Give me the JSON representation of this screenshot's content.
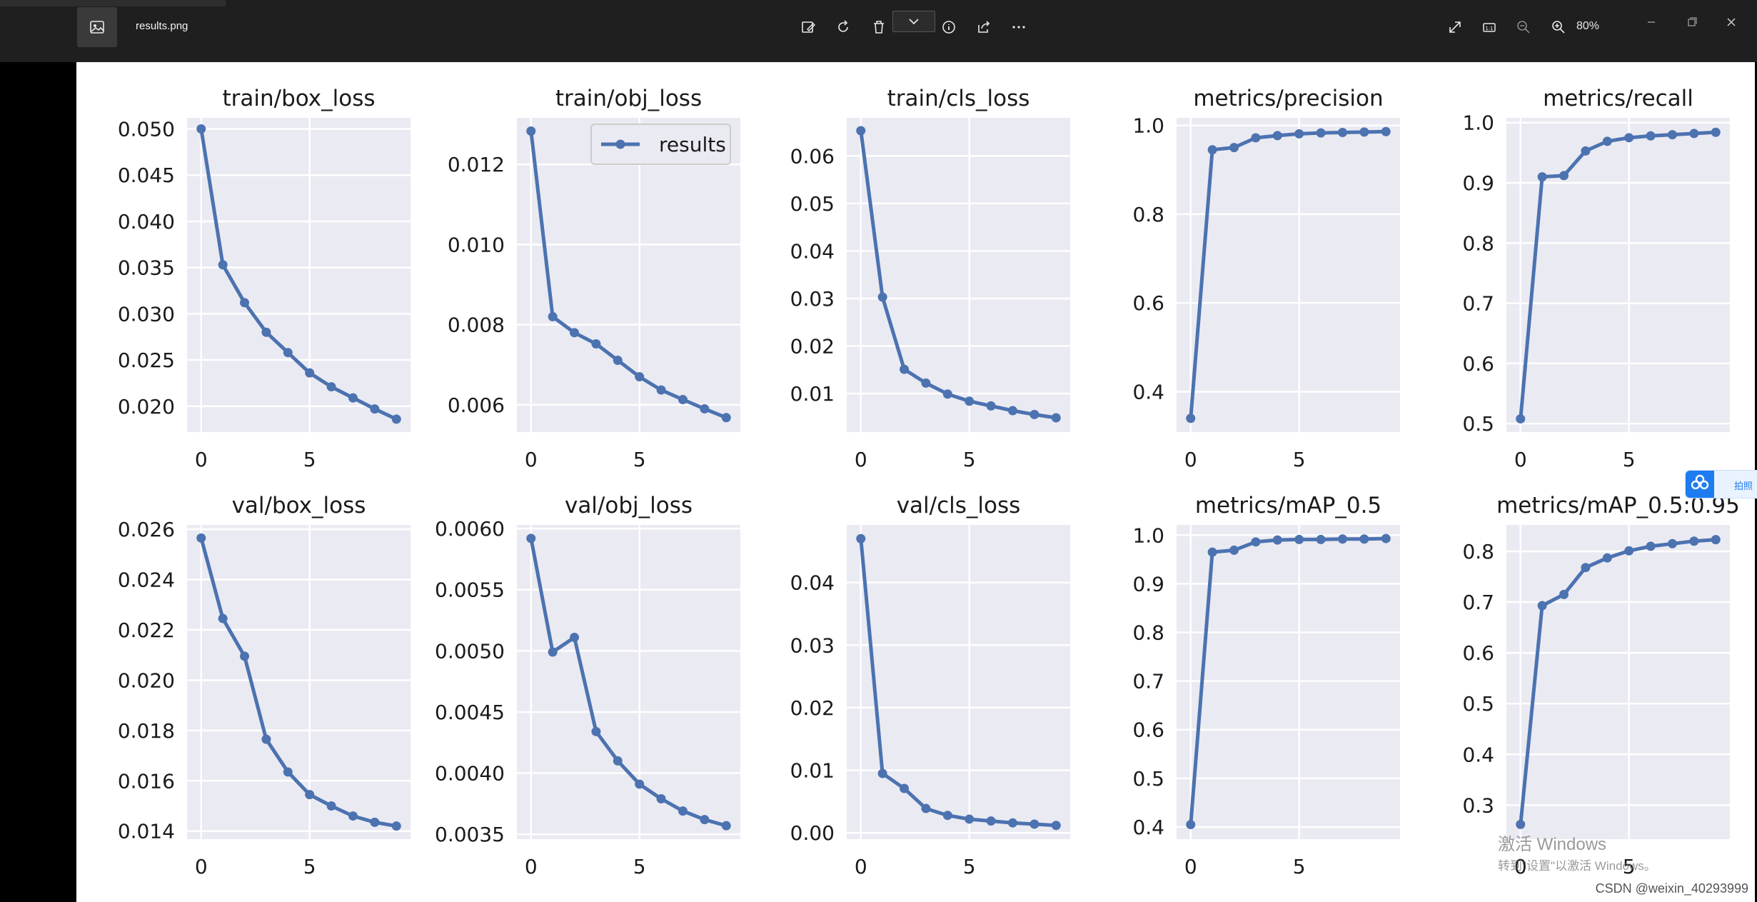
{
  "window": {
    "filename": "results.png",
    "zoom": "80%",
    "toolbar_icons": [
      "edit-image-icon",
      "rotate-icon",
      "delete-icon",
      "chevron-down-icon",
      "info-icon",
      "share-icon",
      "more-icon"
    ],
    "view_icons": [
      "fullscreen-icon",
      "actual-size-icon",
      "zoom-out-icon",
      "zoom-in-icon"
    ],
    "caption_icons": [
      "minimize-icon",
      "maximize-icon",
      "close-icon"
    ],
    "accent": "#1e7cf0"
  },
  "overlay": {
    "activation_line1": "激活 Windows",
    "activation_line2": "转到\"设置\"以激活 Windows。",
    "csdn": "CSDN @weixin_40293999",
    "side_widget_label": "拍照"
  },
  "chart_data": [
    {
      "type": "line",
      "title": "train/box_loss",
      "x": [
        0,
        1,
        2,
        3,
        4,
        5,
        6,
        7,
        8,
        9
      ],
      "values": [
        0.05,
        0.0353,
        0.0312,
        0.028,
        0.0258,
        0.0236,
        0.0221,
        0.0209,
        0.0197,
        0.0186
      ],
      "ylim": [
        0.0172,
        0.0512
      ],
      "yticks": [
        0.05,
        0.045,
        0.04,
        0.035,
        0.03,
        0.025,
        0.02
      ],
      "ytick_labels": [
        "0.050",
        "0.045",
        "0.040",
        "0.035",
        "0.030",
        "0.025",
        "0.020"
      ],
      "xticks": [
        0,
        5
      ],
      "xtick_labels": [
        "0",
        "5"
      ],
      "grid": true
    },
    {
      "type": "line",
      "title": "train/obj_loss",
      "x": [
        0,
        1,
        2,
        3,
        4,
        5,
        6,
        7,
        8,
        9
      ],
      "values": [
        0.01283,
        0.0082,
        0.0078,
        0.00752,
        0.00711,
        0.0067,
        0.00637,
        0.00613,
        0.0059,
        0.00568
      ],
      "ylim": [
        0.00532,
        0.01316
      ],
      "yticks": [
        0.012,
        0.01,
        0.008,
        0.006
      ],
      "ytick_labels": [
        "0.012",
        "0.010",
        "0.008",
        "0.006"
      ],
      "xticks": [
        0,
        5
      ],
      "xtick_labels": [
        "0",
        "5"
      ],
      "grid": true,
      "legend": {
        "entries": [
          "results"
        ],
        "placement": "top-right"
      }
    },
    {
      "type": "line",
      "title": "train/cls_loss",
      "x": [
        0,
        1,
        2,
        3,
        4,
        5,
        6,
        7,
        8,
        9
      ],
      "values": [
        0.0653,
        0.0303,
        0.0151,
        0.0122,
        0.0099,
        0.0084,
        0.0074,
        0.0064,
        0.0056,
        0.0049
      ],
      "ylim": [
        0.0019,
        0.068
      ],
      "yticks": [
        0.06,
        0.05,
        0.04,
        0.03,
        0.02,
        0.01
      ],
      "ytick_labels": [
        "0.06",
        "0.05",
        "0.04",
        "0.03",
        "0.02",
        "0.01"
      ],
      "xticks": [
        0,
        5
      ],
      "xtick_labels": [
        "0",
        "5"
      ],
      "grid": true
    },
    {
      "type": "line",
      "title": "metrics/precision",
      "x": [
        0,
        1,
        2,
        3,
        4,
        5,
        6,
        7,
        8,
        9
      ],
      "values": [
        0.34,
        0.945,
        0.95,
        0.972,
        0.977,
        0.981,
        0.983,
        0.984,
        0.985,
        0.986
      ],
      "ylim": [
        0.309,
        1.017
      ],
      "yticks": [
        1.0,
        0.8,
        0.6,
        0.4
      ],
      "ytick_labels": [
        "1.0",
        "0.8",
        "0.6",
        "0.4"
      ],
      "xticks": [
        0,
        5
      ],
      "xtick_labels": [
        "0",
        "5"
      ],
      "grid": true
    },
    {
      "type": "line",
      "title": "metrics/recall",
      "x": [
        0,
        1,
        2,
        3,
        4,
        5,
        6,
        7,
        8,
        9
      ],
      "values": [
        0.508,
        0.91,
        0.912,
        0.953,
        0.969,
        0.975,
        0.978,
        0.98,
        0.982,
        0.984
      ],
      "ylim": [
        0.486,
        1.008
      ],
      "yticks": [
        1.0,
        0.9,
        0.8,
        0.7,
        0.6,
        0.5
      ],
      "ytick_labels": [
        "1.0",
        "0.9",
        "0.8",
        "0.7",
        "0.6",
        "0.5"
      ],
      "xticks": [
        0,
        5
      ],
      "xtick_labels": [
        "0",
        "5"
      ],
      "grid": true
    },
    {
      "type": "line",
      "title": "val/box_loss",
      "x": [
        0,
        1,
        2,
        3,
        4,
        5,
        6,
        7,
        8,
        9
      ],
      "values": [
        0.02565,
        0.02245,
        0.02095,
        0.01765,
        0.01635,
        0.01545,
        0.015,
        0.0146,
        0.01435,
        0.0142
      ],
      "ylim": [
        0.01368,
        0.02617
      ],
      "yticks": [
        0.026,
        0.024,
        0.022,
        0.02,
        0.018,
        0.016,
        0.014
      ],
      "ytick_labels": [
        "0.026",
        "0.024",
        "0.022",
        "0.020",
        "0.018",
        "0.016",
        "0.014"
      ],
      "xticks": [
        0,
        5
      ],
      "xtick_labels": [
        "0",
        "5"
      ],
      "grid": true
    },
    {
      "type": "line",
      "title": "val/obj_loss",
      "x": [
        0,
        1,
        2,
        3,
        4,
        5,
        6,
        7,
        8,
        9
      ],
      "values": [
        0.00592,
        0.00499,
        0.00511,
        0.00434,
        0.0041,
        0.00391,
        0.00379,
        0.00369,
        0.00362,
        0.00357
      ],
      "ylim": [
        0.00346,
        0.00603
      ],
      "yticks": [
        0.006,
        0.0055,
        0.005,
        0.0045,
        0.004,
        0.0035
      ],
      "ytick_labels": [
        "0.0060",
        "0.0055",
        "0.0050",
        "0.0045",
        "0.0040",
        "0.0035"
      ],
      "xticks": [
        0,
        5
      ],
      "xtick_labels": [
        "0",
        "5"
      ],
      "grid": true
    },
    {
      "type": "line",
      "title": "val/cls_loss",
      "x": [
        0,
        1,
        2,
        3,
        4,
        5,
        6,
        7,
        8,
        9
      ],
      "values": [
        0.047,
        0.0095,
        0.0071,
        0.0039,
        0.0028,
        0.0022,
        0.0019,
        0.0016,
        0.0014,
        0.0012
      ],
      "ylim": [
        -0.001,
        0.0492
      ],
      "yticks": [
        0.04,
        0.03,
        0.02,
        0.01,
        0.0
      ],
      "ytick_labels": [
        "0.04",
        "0.03",
        "0.02",
        "0.01",
        "0.00"
      ],
      "xticks": [
        0,
        5
      ],
      "xtick_labels": [
        "0",
        "5"
      ],
      "grid": true
    },
    {
      "type": "line",
      "title": "metrics/mAP_0.5",
      "x": [
        0,
        1,
        2,
        3,
        4,
        5,
        6,
        7,
        8,
        9
      ],
      "values": [
        0.405,
        0.965,
        0.969,
        0.986,
        0.99,
        0.991,
        0.991,
        0.992,
        0.992,
        0.993
      ],
      "ylim": [
        0.375,
        1.021
      ],
      "yticks": [
        1.0,
        0.9,
        0.8,
        0.7,
        0.6,
        0.5,
        0.4
      ],
      "ytick_labels": [
        "1.0",
        "0.9",
        "0.8",
        "0.7",
        "0.6",
        "0.5",
        "0.4"
      ],
      "xticks": [
        0,
        5
      ],
      "xtick_labels": [
        "0",
        "5"
      ],
      "grid": true
    },
    {
      "type": "line",
      "title": "metrics/mAP_0.5:0.95",
      "x": [
        0,
        1,
        2,
        3,
        4,
        5,
        6,
        7,
        8,
        9
      ],
      "values": [
        0.262,
        0.693,
        0.715,
        0.768,
        0.787,
        0.801,
        0.81,
        0.815,
        0.82,
        0.823
      ],
      "ylim": [
        0.233,
        0.852
      ],
      "yticks": [
        0.8,
        0.7,
        0.6,
        0.5,
        0.4,
        0.3
      ],
      "ytick_labels": [
        "0.8",
        "0.7",
        "0.6",
        "0.5",
        "0.4",
        "0.3"
      ],
      "xticks": [
        0,
        5
      ],
      "xtick_labels": [
        "0",
        "5"
      ],
      "grid": true
    }
  ]
}
